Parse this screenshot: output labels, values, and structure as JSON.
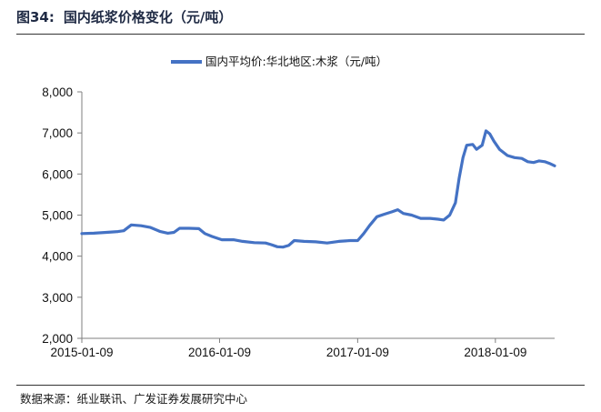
{
  "figure": {
    "number": "图34:",
    "title": "国内纸浆价格变化（元/吨）",
    "source": "数据来源：纸业联讯、广发证券发展研究中心"
  },
  "colors": {
    "series": "#4472C4",
    "axis": "#7f7f7f",
    "text": "#111111"
  },
  "chart_data": {
    "type": "line",
    "title": "",
    "xlabel": "",
    "ylabel": "",
    "ylim": [
      2000,
      8000
    ],
    "yticks": [
      2000,
      3000,
      4000,
      5000,
      6000,
      7000,
      8000
    ],
    "ytick_labels": [
      "2,000",
      "3,000",
      "4,000",
      "5,000",
      "6,000",
      "7,000",
      "8,000"
    ],
    "xrange": [
      "2015-01-09",
      "2018-06-15"
    ],
    "xticks": [
      "2015-01-09",
      "2016-01-09",
      "2017-01-09",
      "2018-01-09"
    ],
    "grid": false,
    "legend_position": "top-center",
    "series": [
      {
        "name": "国内平均价:华北地区:木浆（元/吨）",
        "points": [
          [
            "2015-01-09",
            4550
          ],
          [
            "2015-02-10",
            4560
          ],
          [
            "2015-03-15",
            4580
          ],
          [
            "2015-04-15",
            4600
          ],
          [
            "2015-04-30",
            4620
          ],
          [
            "2015-05-20",
            4760
          ],
          [
            "2015-06-15",
            4740
          ],
          [
            "2015-07-10",
            4700
          ],
          [
            "2015-08-05",
            4600
          ],
          [
            "2015-08-25",
            4560
          ],
          [
            "2015-09-10",
            4580
          ],
          [
            "2015-09-25",
            4680
          ],
          [
            "2015-10-20",
            4680
          ],
          [
            "2015-11-15",
            4670
          ],
          [
            "2015-12-01",
            4550
          ],
          [
            "2015-12-20",
            4480
          ],
          [
            "2016-01-15",
            4400
          ],
          [
            "2016-02-15",
            4400
          ],
          [
            "2016-03-10",
            4360
          ],
          [
            "2016-04-10",
            4330
          ],
          [
            "2016-05-10",
            4320
          ],
          [
            "2016-05-25",
            4280
          ],
          [
            "2016-06-10",
            4230
          ],
          [
            "2016-06-25",
            4220
          ],
          [
            "2016-07-10",
            4260
          ],
          [
            "2016-07-25",
            4380
          ],
          [
            "2016-08-20",
            4360
          ],
          [
            "2016-09-20",
            4350
          ],
          [
            "2016-10-20",
            4320
          ],
          [
            "2016-11-20",
            4360
          ],
          [
            "2016-12-20",
            4380
          ],
          [
            "2017-01-09",
            4380
          ],
          [
            "2017-01-25",
            4550
          ],
          [
            "2017-02-10",
            4750
          ],
          [
            "2017-03-01",
            4960
          ],
          [
            "2017-03-20",
            5020
          ],
          [
            "2017-04-10",
            5080
          ],
          [
            "2017-04-25",
            5130
          ],
          [
            "2017-05-10",
            5040
          ],
          [
            "2017-06-01",
            5000
          ],
          [
            "2017-06-25",
            4920
          ],
          [
            "2017-07-20",
            4920
          ],
          [
            "2017-08-10",
            4900
          ],
          [
            "2017-08-25",
            4880
          ],
          [
            "2017-09-10",
            5000
          ],
          [
            "2017-09-25",
            5300
          ],
          [
            "2017-10-05",
            5900
          ],
          [
            "2017-10-15",
            6400
          ],
          [
            "2017-10-25",
            6700
          ],
          [
            "2017-11-10",
            6720
          ],
          [
            "2017-11-20",
            6600
          ],
          [
            "2017-12-05",
            6700
          ],
          [
            "2017-12-15",
            7050
          ],
          [
            "2017-12-25",
            6980
          ],
          [
            "2018-01-05",
            6800
          ],
          [
            "2018-01-20",
            6600
          ],
          [
            "2018-02-10",
            6450
          ],
          [
            "2018-03-01",
            6400
          ],
          [
            "2018-03-20",
            6380
          ],
          [
            "2018-04-05",
            6300
          ],
          [
            "2018-04-20",
            6280
          ],
          [
            "2018-05-05",
            6320
          ],
          [
            "2018-05-20",
            6300
          ],
          [
            "2018-06-01",
            6260
          ],
          [
            "2018-06-15",
            6200
          ]
        ]
      }
    ]
  }
}
